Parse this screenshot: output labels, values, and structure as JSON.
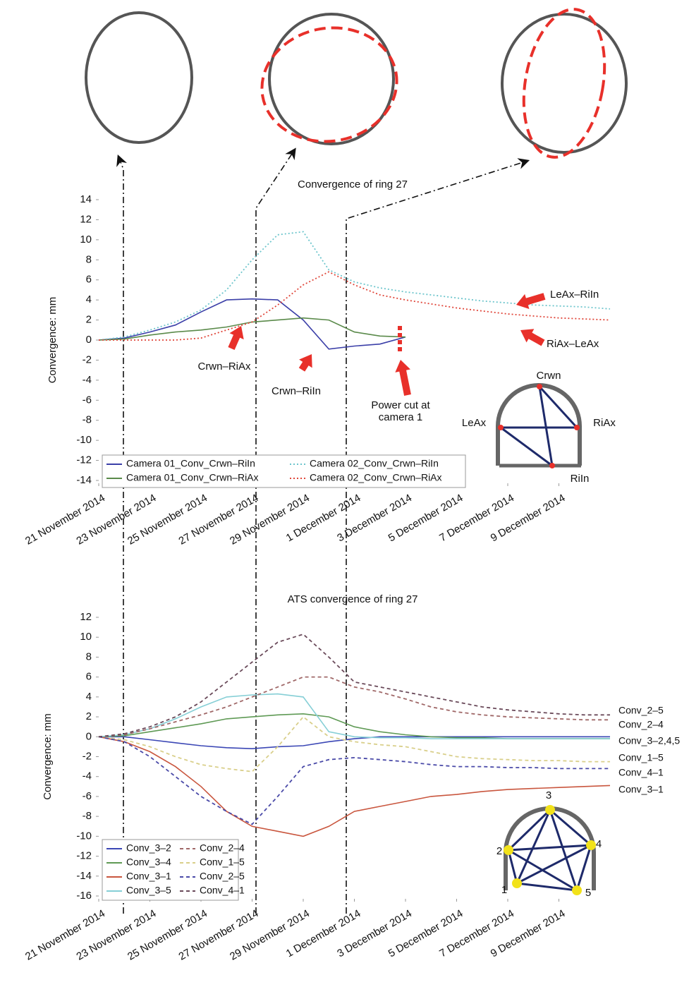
{
  "chart_data": [
    {
      "type": "line",
      "title": "Convergence of ring 27",
      "y_label": "Convergence: mm",
      "x": [
        "2014-11-21",
        "2014-11-22",
        "2014-11-23",
        "2014-11-24",
        "2014-11-25",
        "2014-11-26",
        "2014-11-27",
        "2014-11-28",
        "2014-11-29",
        "2014-11-30",
        "2014-12-01",
        "2014-12-02",
        "2014-12-03",
        "2014-12-04",
        "2014-12-05",
        "2014-12-06",
        "2014-12-07",
        "2014-12-08",
        "2014-12-09",
        "2014-12-10",
        "2014-12-11"
      ],
      "xlim": [
        "2014-11-21",
        "2014-12-11"
      ],
      "xticks": [
        {
          "value": "2014-11-21",
          "label": "21 November 2014"
        },
        {
          "value": "2014-11-23",
          "label": "23 November 2014"
        },
        {
          "value": "2014-11-25",
          "label": "25 November 2014"
        },
        {
          "value": "2014-11-27",
          "label": "27 November 2014"
        },
        {
          "value": "2014-11-29",
          "label": "29 November 2014"
        },
        {
          "value": "2014-12-01",
          "label": "1 December 2014"
        },
        {
          "value": "2014-12-03",
          "label": "3 December 2014"
        },
        {
          "value": "2014-12-05",
          "label": "5 December 2014"
        },
        {
          "value": "2014-12-07",
          "label": "7 December 2014"
        },
        {
          "value": "2014-12-09",
          "label": "9 December 2014"
        }
      ],
      "ylim": [
        -14,
        14
      ],
      "yticks": [
        -14,
        -12,
        -10,
        -8,
        -6,
        -4,
        -2,
        0,
        2,
        4,
        6,
        8,
        10,
        12,
        14
      ],
      "legend": "lower left",
      "series": [
        {
          "name": "Camera 01_Conv_Crwn–RiIn",
          "color": "#3b3fa8",
          "style": "solid",
          "values": [
            0,
            0.2,
            0.8,
            1.5,
            2.8,
            4,
            4.1,
            4,
            2,
            -0.9,
            -0.6,
            -0.4,
            0.3,
            null,
            null,
            null,
            null,
            null,
            null,
            null,
            null
          ]
        },
        {
          "name": "Camera 01_Conv_Crwn–RiAx",
          "color": "#5a8a4a",
          "style": "solid",
          "values": [
            0,
            0.1,
            0.5,
            0.8,
            1,
            1.3,
            1.8,
            2,
            2.2,
            2,
            0.8,
            0.4,
            0.3,
            null,
            null,
            null,
            null,
            null,
            null,
            null,
            null
          ]
        },
        {
          "name": "Camera 02_Conv_Crwn–RiIn",
          "color": "#6cc5cc",
          "style": "dotted",
          "values": [
            0,
            0.3,
            1,
            1.8,
            3,
            5,
            8,
            10.5,
            10.8,
            7,
            5.8,
            5.2,
            4.8,
            4.5,
            4.2,
            3.9,
            3.7,
            3.5,
            3.4,
            3.3,
            3.1
          ]
        },
        {
          "name": "Camera 02_Conv_Crwn–RiAx",
          "color": "#e0463a",
          "style": "dotted",
          "values": [
            0,
            0,
            0,
            0,
            0.2,
            1,
            1.8,
            3.5,
            5.5,
            6.8,
            5.5,
            4.5,
            4,
            3.6,
            3.2,
            2.9,
            2.6,
            2.4,
            2.2,
            2.1,
            2
          ]
        }
      ],
      "annotations": [
        "LeAx–RiIn",
        "RiAx–LeAx",
        "Crwn–RiAx",
        "Crwn–RiIn",
        "Power cut at camera 1"
      ],
      "tunnel_labels": [
        "Crwn",
        "LeAx",
        "RiAx",
        "RiIn"
      ]
    },
    {
      "type": "line",
      "title": "ATS convergence of ring 27",
      "y_label": "Convergence: mm",
      "x": [
        "2014-11-21",
        "2014-11-22",
        "2014-11-23",
        "2014-11-24",
        "2014-11-25",
        "2014-11-26",
        "2014-11-27",
        "2014-11-28",
        "2014-11-29",
        "2014-11-30",
        "2014-12-01",
        "2014-12-02",
        "2014-12-03",
        "2014-12-04",
        "2014-12-05",
        "2014-12-06",
        "2014-12-07",
        "2014-12-08",
        "2014-12-09",
        "2014-12-10",
        "2014-12-11"
      ],
      "xlim": [
        "2014-11-21",
        "2014-12-11"
      ],
      "xticks": [
        {
          "value": "2014-11-21",
          "label": "21 November 2014"
        },
        {
          "value": "2014-11-23",
          "label": "23 November 2014"
        },
        {
          "value": "2014-11-25",
          "label": "25 November 2014"
        },
        {
          "value": "2014-11-27",
          "label": "27 November 2014"
        },
        {
          "value": "2014-11-29",
          "label": "29 November 2014"
        },
        {
          "value": "2014-12-01",
          "label": "1 December 2014"
        },
        {
          "value": "2014-12-03",
          "label": "3 December 2014"
        },
        {
          "value": "2014-12-05",
          "label": "5 December 2014"
        },
        {
          "value": "2014-12-07",
          "label": "7 December 2014"
        },
        {
          "value": "2014-12-09",
          "label": "9 December 2014"
        }
      ],
      "ylim": [
        -16,
        12
      ],
      "yticks": [
        -16,
        -14,
        -12,
        -10,
        -8,
        -6,
        -4,
        -2,
        0,
        2,
        4,
        6,
        8,
        10,
        12
      ],
      "legend": "lower left",
      "series": [
        {
          "name": "Conv_3–2",
          "color": "#3b47b5",
          "style": "solid",
          "values": [
            0,
            0,
            -0.3,
            -0.6,
            -0.9,
            -1.1,
            -1.2,
            -1,
            -0.9,
            -0.5,
            -0.2,
            0,
            0,
            0,
            0,
            0,
            0,
            0,
            0,
            0,
            0
          ]
        },
        {
          "name": "Conv_3–4",
          "color": "#5f9a55",
          "style": "solid",
          "values": [
            0,
            0.1,
            0.5,
            0.9,
            1.3,
            1.8,
            2,
            2.2,
            2.3,
            2,
            1,
            0.5,
            0.2,
            0,
            -0.1,
            -0.1,
            -0.2,
            -0.2,
            -0.2,
            -0.2,
            -0.2
          ]
        },
        {
          "name": "Conv_3–1",
          "color": "#c9563e",
          "style": "solid",
          "values": [
            0,
            -0.5,
            -1.5,
            -3,
            -5,
            -7.5,
            -9,
            -9.5,
            -10,
            -9,
            -7.5,
            -7,
            -6.5,
            -6,
            -5.8,
            -5.5,
            -5.3,
            -5.2,
            -5.1,
            -5,
            -4.9
          ]
        },
        {
          "name": "Conv_3–5",
          "color": "#86cfd6",
          "style": "solid",
          "values": [
            0,
            0.2,
            0.8,
            1.8,
            3,
            4,
            4.2,
            4.3,
            4,
            0.5,
            0,
            -0.1,
            -0.1,
            -0.2,
            -0.2,
            -0.2,
            -0.2,
            -0.2,
            -0.2,
            -0.2,
            -0.2
          ]
        },
        {
          "name": "Conv_2–4",
          "color": "#a06868",
          "style": "dashed",
          "values": [
            0,
            0.2,
            0.8,
            1.5,
            2.2,
            3,
            4,
            5,
            6,
            6,
            5,
            4.5,
            3.8,
            3,
            2.5,
            2.2,
            2,
            1.9,
            1.8,
            1.7,
            1.7
          ]
        },
        {
          "name": "Conv_1–5",
          "color": "#d9cf8a",
          "style": "dashed",
          "values": [
            0,
            -0.3,
            -1,
            -2,
            -2.8,
            -3.2,
            -3.5,
            -1,
            2,
            0,
            -0.5,
            -0.8,
            -1,
            -1.5,
            -2,
            -2.2,
            -2.3,
            -2.4,
            -2.4,
            -2.5,
            -2.5
          ]
        },
        {
          "name": "Conv_2–5",
          "color": "#4a4aa8",
          "style": "dashed",
          "values": [
            0,
            -0.5,
            -2,
            -4,
            -6,
            -7.5,
            -8.8,
            -6,
            -3,
            -2.3,
            -2.1,
            -2.3,
            -2.5,
            -2.8,
            -3,
            -3,
            -3.1,
            -3.1,
            -3.2,
            -3.2,
            -3.2
          ]
        },
        {
          "name": "Conv_4–1",
          "color": "#6a4a5a",
          "style": "dashed",
          "values": [
            0,
            0.3,
            1,
            2,
            3.5,
            5.5,
            7.5,
            9.5,
            10.3,
            8,
            5.5,
            5,
            4.5,
            4,
            3.5,
            3,
            2.7,
            2.5,
            2.3,
            2.2,
            2.2
          ]
        }
      ],
      "end_labels": [
        "Conv_2–5",
        "Conv_2–4",
        "Conv_3–2,4,5",
        "Conv_1–5",
        "Conv_4–1",
        "Conv_3–1"
      ],
      "tunnel_labels": [
        "1",
        "2",
        "3",
        "4",
        "5"
      ]
    }
  ]
}
